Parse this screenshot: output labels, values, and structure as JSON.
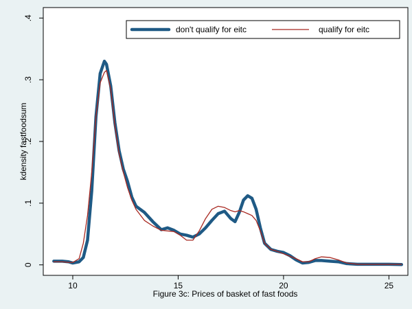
{
  "chart_data": {
    "type": "line",
    "title": "",
    "xlabel": "Figure 3c: Prices of basket of fast foods",
    "ylabel": "kdensity fastfoodsum",
    "xlim": [
      8.6,
      25.9
    ],
    "ylim": [
      -0.017,
      0.417
    ],
    "x_ticks": [
      10,
      15,
      20,
      25
    ],
    "y_ticks": [
      0,
      0.1,
      0.2,
      0.3,
      0.4
    ],
    "x_tick_labels": [
      "10",
      "15",
      "20",
      "25"
    ],
    "y_tick_labels": [
      "0",
      ".1",
      ".2",
      ".3",
      ".4"
    ],
    "grid": false,
    "legend_position": "top",
    "series": [
      {
        "name": "don't qualify for eitc",
        "color": "#1f5a85",
        "x": [
          9.1,
          9.5,
          9.8,
          10.0,
          10.3,
          10.5,
          10.7,
          10.9,
          11.1,
          11.3,
          11.5,
          11.6,
          11.8,
          12.0,
          12.2,
          12.4,
          12.6,
          12.8,
          13.0,
          13.4,
          13.8,
          14.2,
          14.5,
          14.8,
          15.1,
          15.4,
          15.7,
          16.0,
          16.3,
          16.6,
          16.9,
          17.2,
          17.5,
          17.7,
          17.9,
          18.1,
          18.3,
          18.5,
          18.7,
          18.9,
          19.1,
          19.4,
          19.7,
          20.0,
          20.3,
          20.6,
          20.9,
          21.2,
          21.5,
          21.8,
          22.2,
          22.6,
          23.0,
          23.5,
          24.0,
          24.5,
          25.0,
          25.6
        ],
        "y": [
          0.006,
          0.006,
          0.005,
          0.003,
          0.005,
          0.012,
          0.04,
          0.12,
          0.24,
          0.31,
          0.33,
          0.325,
          0.29,
          0.23,
          0.185,
          0.155,
          0.135,
          0.11,
          0.095,
          0.085,
          0.07,
          0.057,
          0.06,
          0.056,
          0.05,
          0.048,
          0.045,
          0.05,
          0.06,
          0.072,
          0.083,
          0.087,
          0.075,
          0.07,
          0.085,
          0.105,
          0.112,
          0.108,
          0.09,
          0.06,
          0.035,
          0.025,
          0.022,
          0.02,
          0.015,
          0.008,
          0.003,
          0.004,
          0.007,
          0.007,
          0.006,
          0.005,
          0.002,
          0.001,
          0.001,
          0.001,
          0.001,
          0.0005
        ]
      },
      {
        "name": "qualify for eitc",
        "color": "#a82820",
        "x": [
          9.1,
          9.5,
          9.8,
          10.0,
          10.3,
          10.5,
          10.7,
          10.9,
          11.1,
          11.3,
          11.5,
          11.6,
          11.8,
          12.0,
          12.2,
          12.4,
          12.6,
          12.8,
          13.0,
          13.4,
          13.8,
          14.2,
          14.5,
          14.8,
          15.1,
          15.4,
          15.7,
          16.0,
          16.3,
          16.6,
          16.9,
          17.2,
          17.5,
          17.7,
          17.9,
          18.1,
          18.3,
          18.5,
          18.7,
          18.9,
          19.1,
          19.4,
          19.7,
          20.0,
          20.3,
          20.6,
          20.9,
          21.2,
          21.5,
          21.8,
          22.2,
          22.6,
          23.0,
          23.5,
          24.0,
          24.5,
          25.0,
          25.6
        ],
        "y": [
          0.005,
          0.005,
          0.004,
          0.004,
          0.01,
          0.035,
          0.08,
          0.15,
          0.24,
          0.295,
          0.312,
          0.315,
          0.285,
          0.225,
          0.18,
          0.15,
          0.125,
          0.105,
          0.09,
          0.072,
          0.063,
          0.056,
          0.055,
          0.054,
          0.048,
          0.04,
          0.04,
          0.055,
          0.075,
          0.09,
          0.095,
          0.093,
          0.088,
          0.086,
          0.088,
          0.086,
          0.083,
          0.08,
          0.072,
          0.055,
          0.035,
          0.025,
          0.022,
          0.018,
          0.014,
          0.01,
          0.005,
          0.005,
          0.01,
          0.013,
          0.012,
          0.008,
          0.003,
          0.001,
          0.0008,
          0.0008,
          0.0008,
          0.0008
        ]
      }
    ]
  }
}
